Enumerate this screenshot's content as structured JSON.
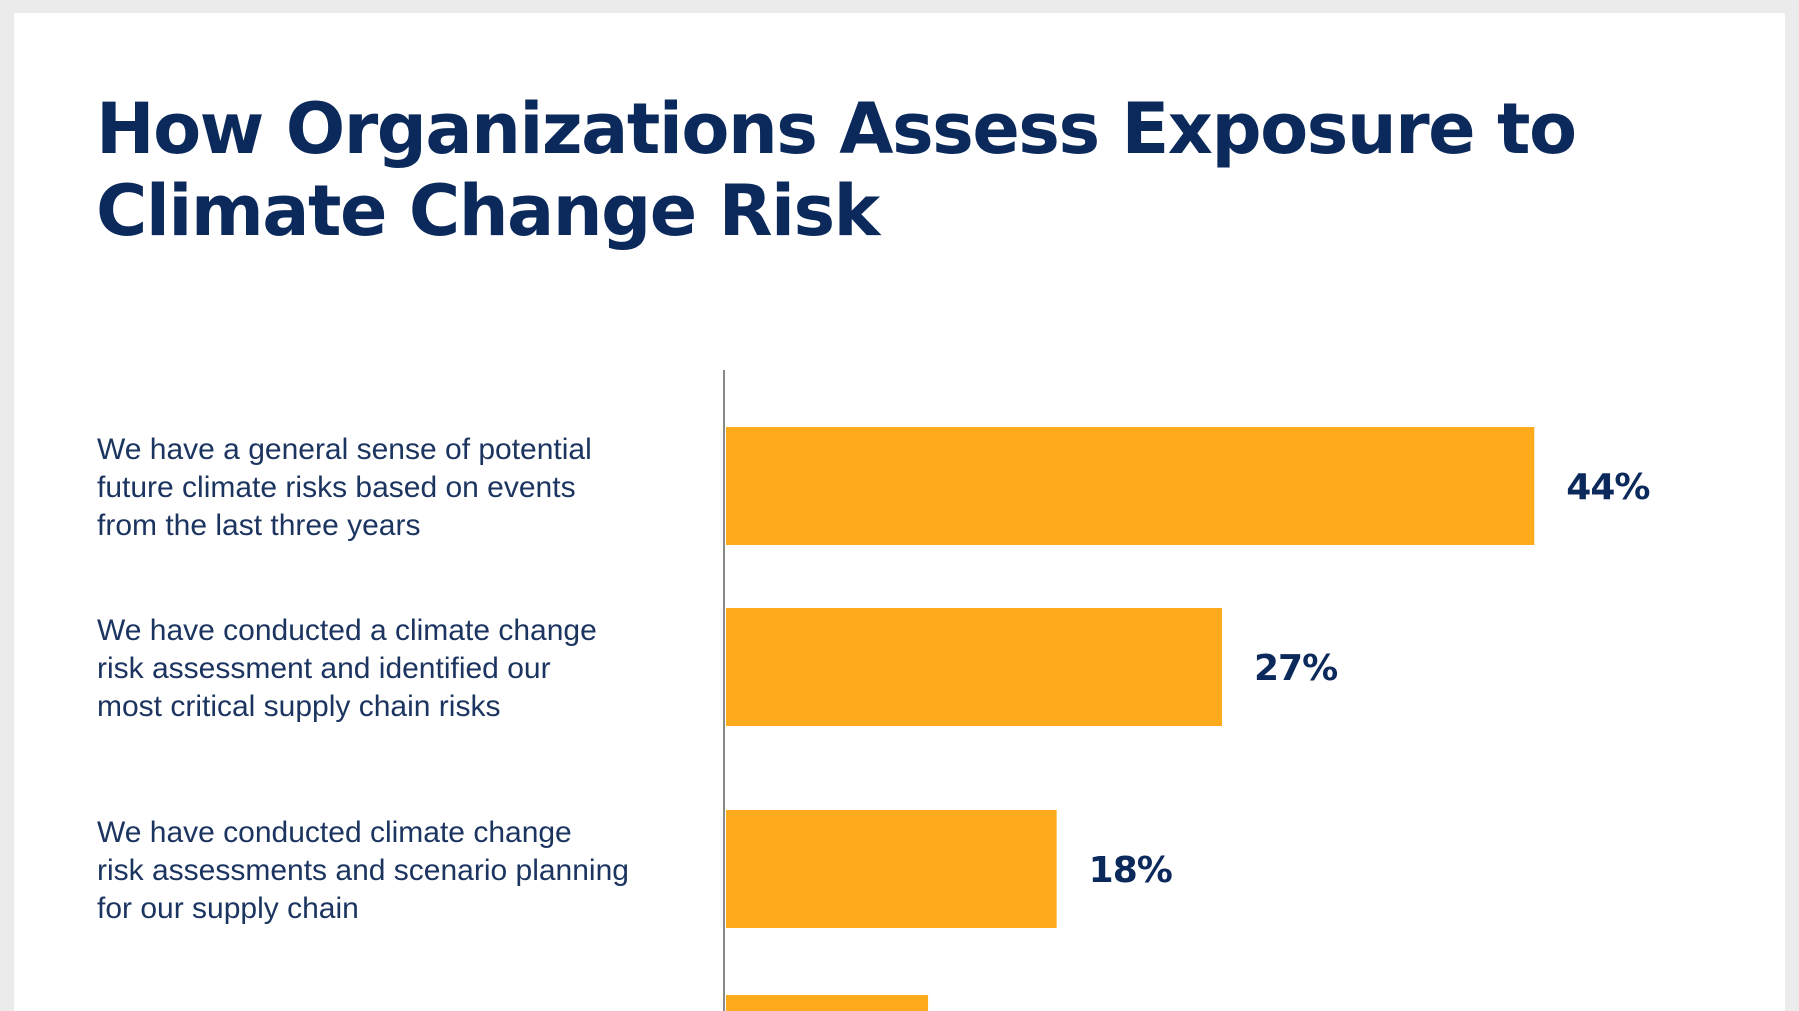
{
  "chart_data": {
    "type": "bar",
    "orientation": "horizontal",
    "title": "How Organizations Assess Exposure to Climate Change Risk",
    "title_lines": [
      "How Organizations Assess Exposure to",
      "Climate Change Risk"
    ],
    "categories": [
      [
        "We have a general sense of potential",
        "future climate risks based on events",
        "from the last three years"
      ],
      [
        "We have conducted a climate change",
        "risk assessment and identified our",
        "most critical supply chain risks"
      ],
      [
        "We have conducted climate change",
        "risk assessments and scenario planning",
        "for our supply chain"
      ],
      []
    ],
    "values": [
      44,
      27,
      18,
      11
    ],
    "data_labels": [
      "44%",
      "27%",
      "18%",
      ""
    ],
    "unit": "%",
    "grid": false,
    "colors": {
      "bar": "#fdab1d",
      "text": "#0b2a5b",
      "axis": "#8a8a8a"
    }
  }
}
